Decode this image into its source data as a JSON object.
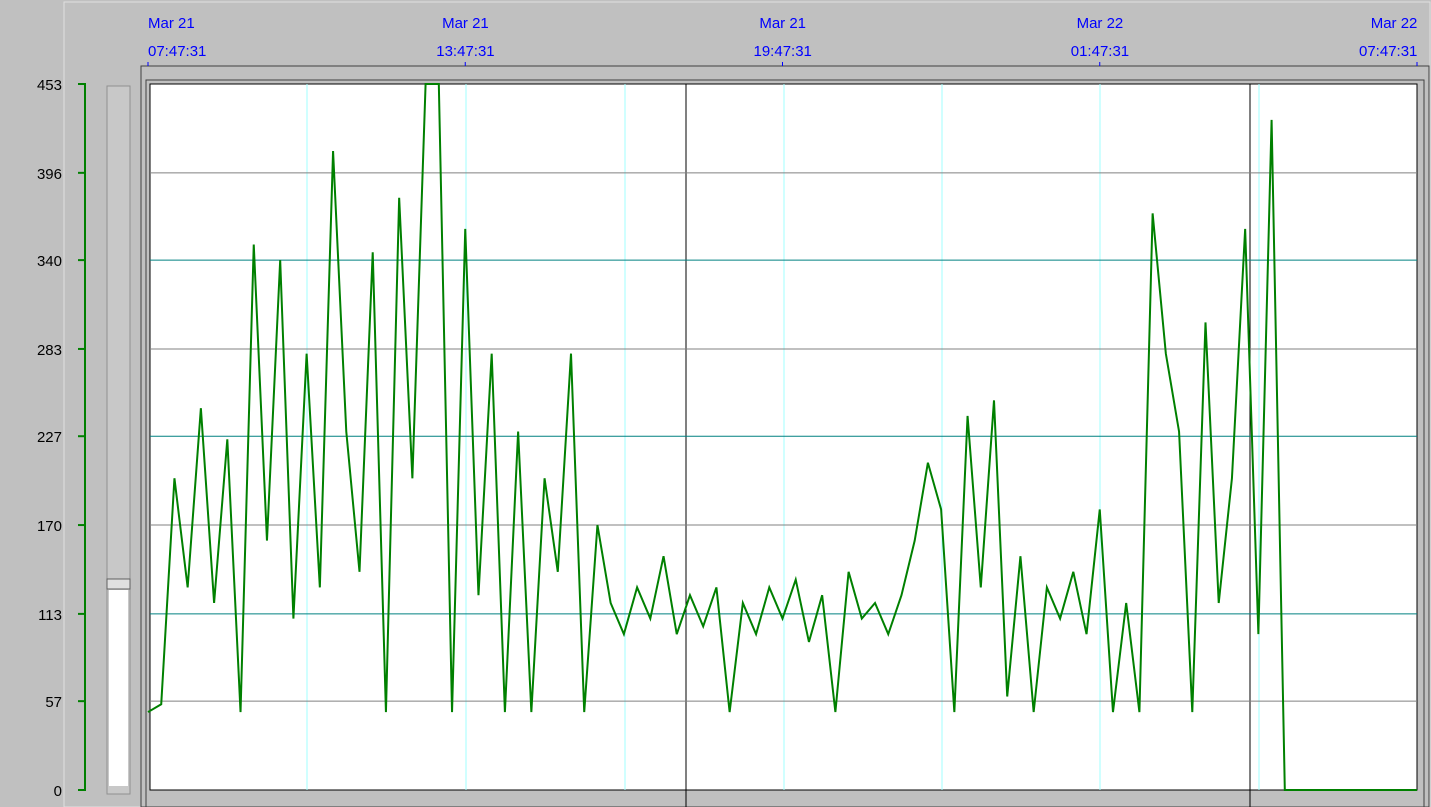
{
  "chart_data": {
    "type": "line",
    "x": [
      0,
      0.25,
      0.5,
      0.75,
      1,
      1.25,
      1.5,
      1.75,
      2,
      2.25,
      2.5,
      2.75,
      3,
      3.25,
      3.5,
      3.75,
      4,
      4.25,
      4.5,
      4.75,
      5,
      5.25,
      5.5,
      5.75,
      6,
      6.25,
      6.5,
      6.75,
      7,
      7.25,
      7.5,
      7.75,
      8,
      8.25,
      8.5,
      8.75,
      9,
      9.25,
      9.5,
      9.75,
      10,
      10.25,
      10.5,
      10.75,
      11,
      11.25,
      11.5,
      11.75,
      12,
      12.25,
      12.5,
      12.75,
      13,
      13.25,
      13.5,
      13.75,
      14,
      14.25,
      14.5,
      14.75,
      15,
      15.25,
      15.5,
      15.75,
      16,
      16.25,
      16.5,
      16.75,
      17,
      17.25,
      17.5,
      17.75,
      18,
      18.25,
      18.5,
      18.75,
      19,
      19.25,
      19.5,
      19.75,
      20,
      20.25,
      20.5,
      20.75,
      21,
      21.25,
      21.5,
      21.75,
      22,
      22.25,
      22.5,
      22.75,
      23,
      23.25,
      23.5,
      23.75,
      24
    ],
    "values": [
      50,
      55,
      200,
      130,
      245,
      120,
      225,
      50,
      350,
      160,
      340,
      110,
      280,
      130,
      410,
      230,
      140,
      345,
      50,
      380,
      200,
      453,
      453,
      50,
      360,
      125,
      280,
      50,
      230,
      50,
      200,
      140,
      280,
      50,
      170,
      120,
      100,
      130,
      110,
      150,
      100,
      125,
      105,
      130,
      50,
      120,
      100,
      130,
      110,
      135,
      95,
      125,
      50,
      140,
      110,
      120,
      100,
      125,
      160,
      210,
      180,
      50,
      240,
      130,
      250,
      60,
      150,
      50,
      130,
      110,
      140,
      100,
      180,
      50,
      120,
      50,
      370,
      280,
      230,
      50,
      300,
      120,
      200,
      360,
      100,
      430,
      0,
      0,
      0,
      0,
      0,
      0,
      0,
      0,
      0,
      0,
      0
    ],
    "color": "#008000",
    "xlim": [
      0,
      24
    ],
    "xticks": [
      {
        "value": 0,
        "label": "Mar 21\n07:47:31"
      },
      {
        "value": 6,
        "label": "Mar 21\n13:47:31"
      },
      {
        "value": 12,
        "label": "Mar 21\n19:47:31"
      },
      {
        "value": 18,
        "label": "Mar 22\n01:47:31"
      },
      {
        "value": 24,
        "label": "Mar 22\n07:47:31"
      }
    ],
    "ylim": [
      0,
      453
    ],
    "yticks": [
      0,
      57,
      113,
      170,
      227,
      283,
      340,
      396,
      453
    ],
    "grid": true
  }
}
